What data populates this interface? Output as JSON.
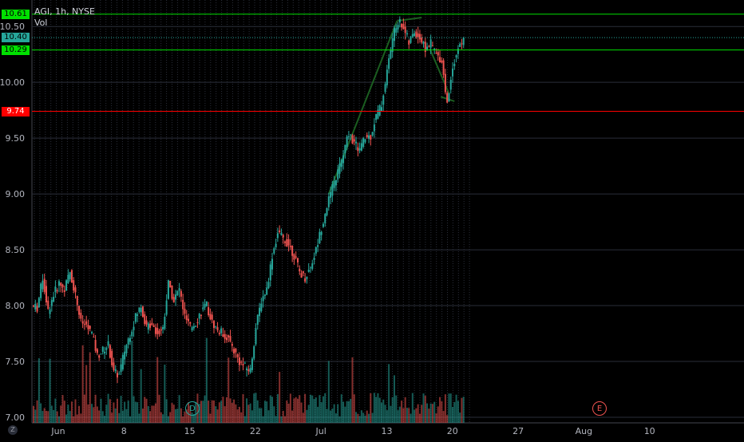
{
  "legend": {
    "symbol_line": "AGI, 1h, NYSE",
    "volume_label": "Vol"
  },
  "colors": {
    "up": "#26a69a",
    "down": "#ef5350",
    "resistance": "#00e000",
    "support": "#ff0000",
    "last": "#26a69a",
    "grid": "#2a2e39"
  },
  "chart_data": {
    "type": "candlestick",
    "symbol": "AGI",
    "interval": "1h",
    "exchange": "NYSE",
    "y_ticks": [
      "7.00",
      "7.50",
      "8.00",
      "8.50",
      "9.00",
      "9.50",
      "10.00",
      "10.50"
    ],
    "x_ticks": [
      "Jun",
      "8",
      "15",
      "22",
      "Jul",
      "13",
      "20",
      "27",
      "Aug",
      "10"
    ],
    "ylim": [
      6.95,
      10.68
    ],
    "horizontal_lines": [
      {
        "value": 10.61,
        "label": "10.61",
        "color": "#00e000",
        "style": "solid"
      },
      {
        "value": 10.4,
        "label": "10.40",
        "color": "#26a69a",
        "style": "dotted"
      },
      {
        "value": 10.29,
        "label": "10.29",
        "color": "#00e000",
        "style": "solid"
      },
      {
        "value": 9.74,
        "label": "9.74",
        "color": "#ff0000",
        "style": "solid"
      }
    ],
    "price_path": [
      8.0,
      7.98,
      8.25,
      7.95,
      8.1,
      8.2,
      8.15,
      8.3,
      8.1,
      7.85,
      7.82,
      7.75,
      7.55,
      7.6,
      7.65,
      7.4,
      7.38,
      7.6,
      7.75,
      7.9,
      8.0,
      7.8,
      7.85,
      7.75,
      7.8,
      8.2,
      8.05,
      8.15,
      7.9,
      7.8,
      7.85,
      7.95,
      8.0,
      7.85,
      7.78,
      7.75,
      7.7,
      7.6,
      7.5,
      7.45,
      7.42,
      7.8,
      8.05,
      8.15,
      8.45,
      8.65,
      8.6,
      8.55,
      8.45,
      8.3,
      8.25,
      8.35,
      8.5,
      8.7,
      8.9,
      9.05,
      9.2,
      9.35,
      9.55,
      9.45,
      9.4,
      9.5,
      9.52,
      9.7,
      9.8,
      10.1,
      10.4,
      10.55,
      10.5,
      10.35,
      10.45,
      10.4,
      10.3,
      10.35,
      10.25,
      10.2,
      9.8,
      10.15,
      10.3,
      10.38
    ],
    "events": [
      {
        "label": "D"
      },
      {
        "label": "E"
      }
    ]
  }
}
